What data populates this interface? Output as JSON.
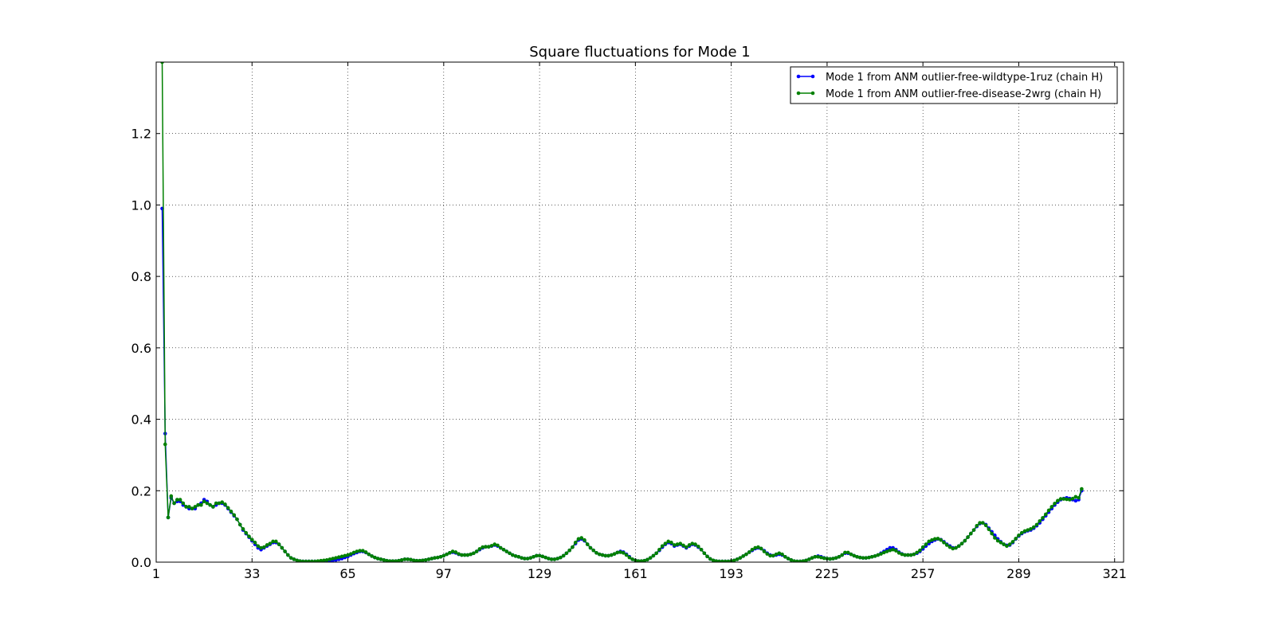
{
  "chart_data": {
    "type": "line",
    "title": "Square fluctuations for Mode 1",
    "xlabel": "",
    "ylabel": "",
    "xlim": [
      1,
      324
    ],
    "ylim": [
      0.0,
      1.4
    ],
    "x_ticks": [
      1,
      33,
      65,
      97,
      129,
      161,
      193,
      225,
      257,
      289,
      321
    ],
    "x_tick_labels": [
      "1",
      "33",
      "65",
      "97",
      "129",
      "161",
      "193",
      "225",
      "257",
      "289",
      "321"
    ],
    "y_ticks": [
      0.0,
      0.2,
      0.4,
      0.6,
      0.8,
      1.0,
      1.2
    ],
    "y_tick_labels": [
      "0.0",
      "0.2",
      "0.4",
      "0.6",
      "0.8",
      "1.0",
      "1.2"
    ],
    "grid": true,
    "legend_position": "top-right",
    "series": [
      {
        "name": "Mode 1 from ANM outlier-free-wildtype-1ruz (chain H)",
        "color": "#0000ff",
        "x_start": 3,
        "values": [
          0.99,
          0.36,
          0.125,
          0.18,
          0.165,
          0.17,
          0.17,
          0.16,
          0.155,
          0.15,
          0.15,
          0.15,
          0.16,
          0.165,
          0.175,
          0.17,
          0.16,
          0.155,
          0.16,
          0.165,
          0.165,
          0.16,
          0.15,
          0.14,
          0.13,
          0.12,
          0.105,
          0.09,
          0.08,
          0.07,
          0.06,
          0.05,
          0.04,
          0.035,
          0.04,
          0.045,
          0.05,
          0.055,
          0.055,
          0.05,
          0.04,
          0.03,
          0.02,
          0.012,
          0.008,
          0.005,
          0.003,
          0.002,
          0.002,
          0.002,
          0.002,
          0.002,
          0.002,
          0.003,
          0.003,
          0.003,
          0.004,
          0.005,
          0.006,
          0.008,
          0.01,
          0.013,
          0.016,
          0.02,
          0.024,
          0.027,
          0.03,
          0.03,
          0.027,
          0.022,
          0.017,
          0.013,
          0.01,
          0.008,
          0.006,
          0.004,
          0.003,
          0.003,
          0.003,
          0.004,
          0.006,
          0.008,
          0.008,
          0.007,
          0.005,
          0.004,
          0.004,
          0.005,
          0.006,
          0.008,
          0.01,
          0.012,
          0.013,
          0.015,
          0.018,
          0.022,
          0.026,
          0.028,
          0.026,
          0.022,
          0.02,
          0.02,
          0.02,
          0.022,
          0.025,
          0.03,
          0.035,
          0.04,
          0.043,
          0.043,
          0.045,
          0.048,
          0.045,
          0.04,
          0.035,
          0.03,
          0.025,
          0.02,
          0.017,
          0.015,
          0.012,
          0.01,
          0.01,
          0.012,
          0.015,
          0.018,
          0.018,
          0.016,
          0.013,
          0.01,
          0.008,
          0.008,
          0.01,
          0.013,
          0.018,
          0.025,
          0.033,
          0.042,
          0.052,
          0.062,
          0.065,
          0.06,
          0.05,
          0.04,
          0.033,
          0.026,
          0.022,
          0.02,
          0.018,
          0.018,
          0.02,
          0.023,
          0.027,
          0.03,
          0.028,
          0.022,
          0.015,
          0.008,
          0.005,
          0.003,
          0.003,
          0.004,
          0.007,
          0.012,
          0.018,
          0.025,
          0.033,
          0.042,
          0.05,
          0.055,
          0.052,
          0.045,
          0.048,
          0.05,
          0.045,
          0.04,
          0.045,
          0.05,
          0.048,
          0.042,
          0.035,
          0.025,
          0.016,
          0.009,
          0.005,
          0.003,
          0.002,
          0.002,
          0.002,
          0.002,
          0.003,
          0.005,
          0.008,
          0.012,
          0.017,
          0.022,
          0.028,
          0.033,
          0.038,
          0.04,
          0.038,
          0.032,
          0.025,
          0.02,
          0.018,
          0.02,
          0.022,
          0.02,
          0.015,
          0.01,
          0.006,
          0.003,
          0.002,
          0.002,
          0.003,
          0.005,
          0.008,
          0.012,
          0.015,
          0.017,
          0.015,
          0.012,
          0.01,
          0.009,
          0.01,
          0.012,
          0.015,
          0.02,
          0.025,
          0.025,
          0.022,
          0.018,
          0.015,
          0.013,
          0.012,
          0.012,
          0.013,
          0.015,
          0.017,
          0.02,
          0.025,
          0.03,
          0.035,
          0.04,
          0.04,
          0.035,
          0.028,
          0.023,
          0.02,
          0.02,
          0.02,
          0.022,
          0.025,
          0.03,
          0.037,
          0.045,
          0.052,
          0.058,
          0.062,
          0.065,
          0.063,
          0.057,
          0.05,
          0.045,
          0.04,
          0.04,
          0.045,
          0.052,
          0.06,
          0.07,
          0.08,
          0.09,
          0.1,
          0.108,
          0.11,
          0.105,
          0.095,
          0.085,
          0.075,
          0.065,
          0.057,
          0.05,
          0.047,
          0.048,
          0.055,
          0.065,
          0.073,
          0.08,
          0.085,
          0.088,
          0.09,
          0.095,
          0.102,
          0.11,
          0.12,
          0.13,
          0.14,
          0.15,
          0.16,
          0.168,
          0.175,
          0.178,
          0.18,
          0.178,
          0.175,
          0.172,
          0.175,
          0.2
        ]
      },
      {
        "name": "Mode 1 from ANM outlier-free-disease-2wrg (chain H)",
        "color": "#008000",
        "x_start": 3,
        "values": [
          1.4,
          0.33,
          0.125,
          0.185,
          0.165,
          0.175,
          0.175,
          0.165,
          0.155,
          0.155,
          0.15,
          0.155,
          0.16,
          0.16,
          0.17,
          0.165,
          0.16,
          0.155,
          0.165,
          0.165,
          0.168,
          0.162,
          0.152,
          0.142,
          0.132,
          0.12,
          0.105,
          0.093,
          0.082,
          0.072,
          0.063,
          0.055,
          0.045,
          0.04,
          0.042,
          0.048,
          0.052,
          0.058,
          0.058,
          0.05,
          0.04,
          0.03,
          0.02,
          0.012,
          0.008,
          0.005,
          0.003,
          0.002,
          0.002,
          0.002,
          0.002,
          0.002,
          0.003,
          0.004,
          0.005,
          0.006,
          0.008,
          0.01,
          0.012,
          0.014,
          0.016,
          0.018,
          0.02,
          0.023,
          0.027,
          0.03,
          0.032,
          0.032,
          0.028,
          0.022,
          0.017,
          0.013,
          0.01,
          0.008,
          0.006,
          0.004,
          0.003,
          0.003,
          0.003,
          0.004,
          0.006,
          0.008,
          0.008,
          0.007,
          0.005,
          0.004,
          0.004,
          0.005,
          0.006,
          0.008,
          0.01,
          0.012,
          0.013,
          0.015,
          0.018,
          0.022,
          0.026,
          0.03,
          0.028,
          0.023,
          0.02,
          0.02,
          0.02,
          0.022,
          0.025,
          0.03,
          0.037,
          0.042,
          0.043,
          0.043,
          0.046,
          0.05,
          0.047,
          0.04,
          0.035,
          0.03,
          0.025,
          0.02,
          0.017,
          0.015,
          0.012,
          0.01,
          0.01,
          0.012,
          0.015,
          0.018,
          0.018,
          0.016,
          0.013,
          0.01,
          0.008,
          0.008,
          0.01,
          0.013,
          0.018,
          0.025,
          0.033,
          0.042,
          0.055,
          0.065,
          0.068,
          0.062,
          0.05,
          0.04,
          0.033,
          0.026,
          0.022,
          0.02,
          0.018,
          0.018,
          0.02,
          0.023,
          0.027,
          0.028,
          0.026,
          0.02,
          0.013,
          0.008,
          0.005,
          0.003,
          0.003,
          0.004,
          0.007,
          0.012,
          0.018,
          0.025,
          0.035,
          0.045,
          0.052,
          0.058,
          0.055,
          0.048,
          0.05,
          0.052,
          0.047,
          0.042,
          0.048,
          0.052,
          0.05,
          0.044,
          0.035,
          0.025,
          0.016,
          0.009,
          0.005,
          0.003,
          0.002,
          0.002,
          0.002,
          0.002,
          0.003,
          0.005,
          0.008,
          0.012,
          0.017,
          0.022,
          0.028,
          0.035,
          0.04,
          0.042,
          0.038,
          0.03,
          0.023,
          0.018,
          0.018,
          0.022,
          0.025,
          0.022,
          0.015,
          0.01,
          0.006,
          0.003,
          0.002,
          0.002,
          0.003,
          0.005,
          0.008,
          0.012,
          0.015,
          0.015,
          0.013,
          0.011,
          0.01,
          0.009,
          0.01,
          0.012,
          0.015,
          0.02,
          0.027,
          0.027,
          0.022,
          0.018,
          0.015,
          0.013,
          0.012,
          0.012,
          0.013,
          0.015,
          0.017,
          0.02,
          0.023,
          0.027,
          0.03,
          0.033,
          0.035,
          0.032,
          0.026,
          0.022,
          0.02,
          0.02,
          0.02,
          0.022,
          0.027,
          0.033,
          0.042,
          0.05,
          0.058,
          0.062,
          0.065,
          0.066,
          0.062,
          0.055,
          0.048,
          0.042,
          0.038,
          0.04,
          0.045,
          0.052,
          0.06,
          0.07,
          0.08,
          0.09,
          0.102,
          0.11,
          0.11,
          0.103,
          0.092,
          0.08,
          0.068,
          0.06,
          0.055,
          0.05,
          0.045,
          0.05,
          0.057,
          0.066,
          0.075,
          0.082,
          0.087,
          0.09,
          0.093,
          0.098,
          0.105,
          0.115,
          0.124,
          0.134,
          0.145,
          0.155,
          0.164,
          0.172,
          0.177,
          0.177,
          0.176,
          0.175,
          0.178,
          0.183,
          0.18,
          0.205
        ]
      }
    ]
  }
}
